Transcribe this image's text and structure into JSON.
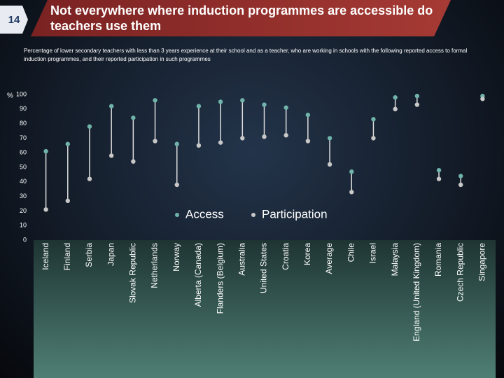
{
  "slide_number": "14",
  "chart_data": {
    "type": "dumbbell",
    "title": "Not everywhere where induction programmes are accessible do teachers use them",
    "subtitle": "Percentage of lower secondary teachers with less than 3 years experience at their school and  as a teacher, who are working in schools with the following reported access to formal induction programmes, and their reported participation in such programmes",
    "y_label": "%",
    "categories": [
      "Iceland",
      "Finland",
      "Serbia",
      "Japan",
      "Slovak Republic",
      "Netherlands",
      "Norway",
      "Alberta (Canada)",
      "Flanders (Belgium)",
      "Australia",
      "United States",
      "Croatia",
      "Korea",
      "Average",
      "Chile",
      "Israel",
      "Malaysia",
      "England (United Kingdom)",
      "Romania",
      "Czech Republic",
      "Singapore"
    ],
    "series": [
      {
        "name": "Access",
        "color": "#6fb3aa",
        "values": [
          61,
          66,
          78,
          92,
          84,
          96,
          66,
          92,
          95,
          96,
          93,
          91,
          86,
          70,
          47,
          83,
          98,
          99,
          48,
          44,
          99
        ]
      },
      {
        "name": "Participation",
        "color": "#c8c8c8",
        "values": [
          21,
          27,
          42,
          58,
          54,
          68,
          38,
          65,
          67,
          70,
          71,
          72,
          68,
          52,
          33,
          70,
          90,
          93,
          42,
          38,
          97
        ]
      }
    ],
    "ylim": [
      0,
      100
    ],
    "yticks": [
      0,
      10,
      20,
      30,
      40,
      50,
      60,
      70,
      80,
      90,
      100
    ],
    "grid": false,
    "legend": "center"
  }
}
